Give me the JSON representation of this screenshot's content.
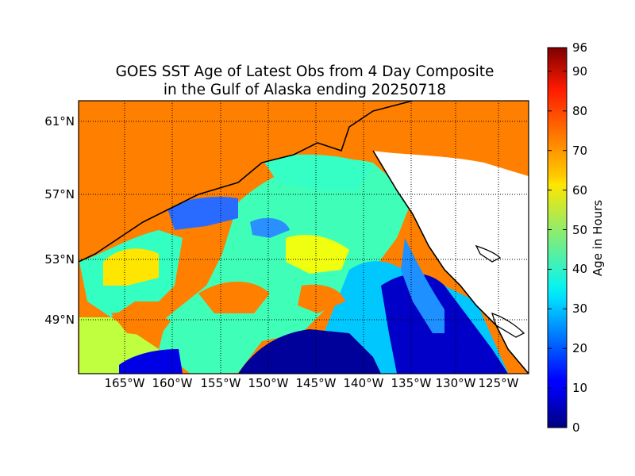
{
  "title": {
    "line1": "GOES SST Age of Latest Obs from 4 Day Composite",
    "line2": "in the Gulf of Alaska ending 20250718"
  },
  "map": {
    "region": "Gulf of Alaska",
    "lon_range": [
      -170,
      -121
    ],
    "lat_range": [
      45.3,
      62
    ],
    "gridlines": "dotted",
    "lat_labels": [
      "61°N",
      "57°N",
      "53°N",
      "49°N"
    ],
    "lon_labels": [
      "165°W",
      "160°W",
      "155°W",
      "150°W",
      "145°W",
      "140°W",
      "135°W",
      "130°W",
      "125°W"
    ],
    "colors": {
      "stale_ocean": "#ff7f00",
      "land": "#ffffff",
      "coastline": "#000000"
    }
  },
  "colorbar": {
    "label": "Age in Hours",
    "min": 0,
    "max": 96,
    "ticks": [
      "0",
      "10",
      "20",
      "30",
      "40",
      "50",
      "60",
      "70",
      "80",
      "90",
      "96"
    ],
    "colormap": "jet"
  }
}
